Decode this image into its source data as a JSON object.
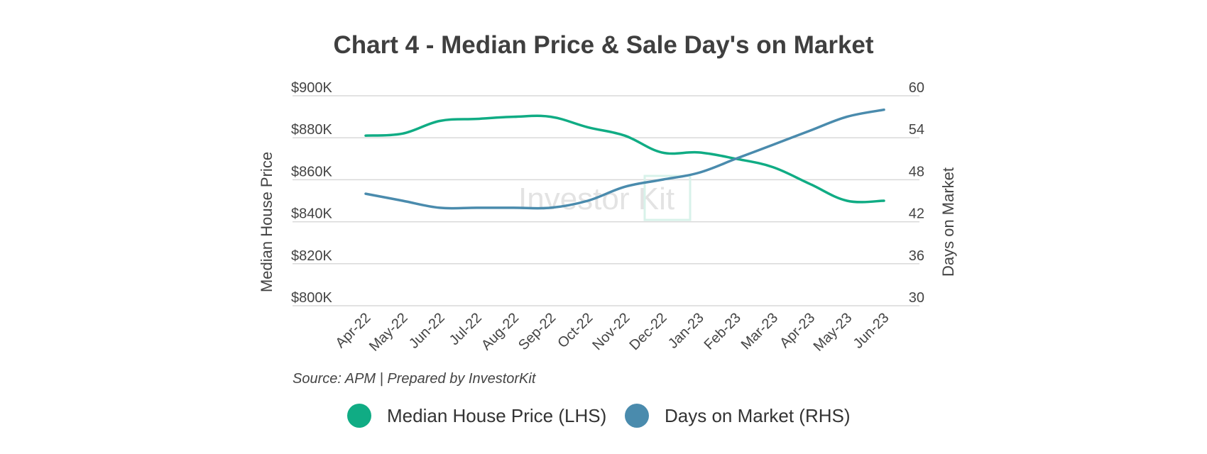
{
  "chart_data": {
    "type": "line",
    "title": "Chart 4 - Median Price & Sale Day's on Market",
    "x": [
      "Apr-22",
      "May-22",
      "Jun-22",
      "Jul-22",
      "Aug-22",
      "Sep-22",
      "Oct-22",
      "Nov-22",
      "Dec-22",
      "Jan-23",
      "Feb-23",
      "Mar-23",
      "Apr-23",
      "May-23",
      "Jun-23"
    ],
    "y_left": {
      "label": "Median House Price",
      "ylim": [
        800000,
        900000
      ],
      "ticks": [
        800000,
        820000,
        840000,
        860000,
        880000,
        900000
      ],
      "tick_labels": [
        "$800K",
        "$820K",
        "$840K",
        "$860K",
        "$880K",
        "$900K"
      ]
    },
    "y_right": {
      "label": "Days on Market",
      "ylim": [
        30,
        60
      ],
      "ticks": [
        30,
        36,
        42,
        48,
        54,
        60
      ],
      "tick_labels": [
        "30",
        "36",
        "42",
        "48",
        "54",
        "60"
      ]
    },
    "series": [
      {
        "name": "Median House Price (LHS)",
        "axis": "left",
        "color": "#10ac84",
        "values": [
          881000,
          882000,
          888000,
          889000,
          890000,
          890000,
          885000,
          881000,
          873000,
          873000,
          870000,
          866000,
          858000,
          850000,
          850000
        ]
      },
      {
        "name": "Days on Market (RHS)",
        "axis": "right",
        "color": "#4a8bad",
        "values": [
          46,
          45,
          44,
          44,
          44,
          44,
          45,
          47,
          48,
          49,
          51,
          53,
          55,
          57,
          58
        ]
      }
    ],
    "grid": true,
    "legend": "bottom",
    "source": "Source: APM | Prepared by InvestorKit",
    "watermark": "Investor Kit"
  }
}
